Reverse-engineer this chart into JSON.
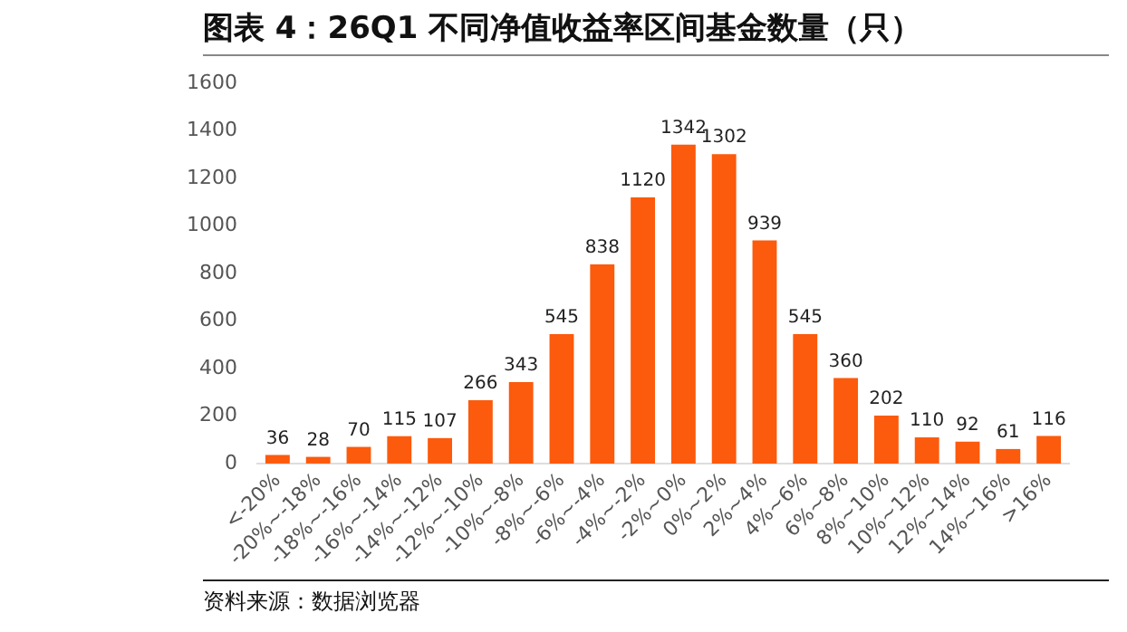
{
  "chart_data": {
    "type": "bar",
    "title": "图表 4：26Q1 不同净值收益率区间基金数量（只）",
    "categories": [
      "<-20%",
      "-20%~-18%",
      "-18%~-16%",
      "-16%~-14%",
      "-14%~-12%",
      "-12%~-10%",
      "-10%~-8%",
      "-8%~-6%",
      "-6%~-4%",
      "-4%~-2%",
      "-2%~0%",
      "0%~2%",
      "2%~4%",
      "4%~6%",
      "6%~8%",
      "8%~10%",
      "10%~12%",
      "12%~14%",
      "14%~16%",
      ">16%"
    ],
    "values": [
      36,
      28,
      70,
      115,
      107,
      266,
      343,
      545,
      838,
      1120,
      1342,
      1302,
      939,
      545,
      360,
      202,
      110,
      92,
      61,
      116
    ],
    "color": "#fc5a0c",
    "ylim": [
      0,
      1600
    ],
    "yticks": [
      0,
      200,
      400,
      600,
      800,
      1000,
      1200,
      1400,
      1600
    ],
    "grid": false,
    "data_labels": true,
    "annotations": [
      "资料来源：数据浏览器"
    ]
  }
}
